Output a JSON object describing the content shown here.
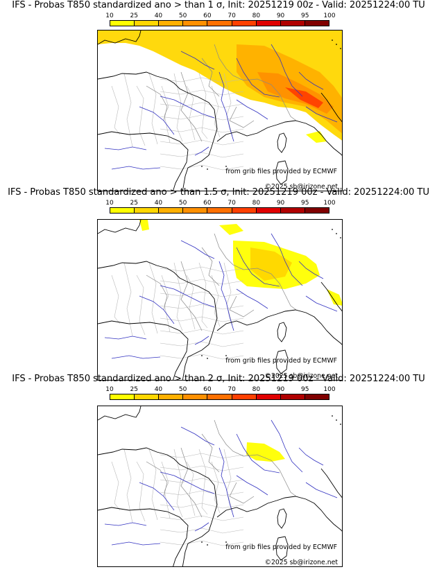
{
  "colorbar": {
    "ticks": [
      "10",
      "25",
      "40",
      "50",
      "60",
      "70",
      "80",
      "90",
      "95",
      "100"
    ],
    "colors": [
      "#ffff00",
      "#ffd700",
      "#ffb000",
      "#ff9000",
      "#ff7000",
      "#ff4000",
      "#e00000",
      "#b00000",
      "#800000",
      "#500000"
    ]
  },
  "panels": [
    {
      "title": "IFS - Probas T850  standardized ano > than 1 σ, Init: 20251219 00z - Valid: 20251224:00 TU",
      "credit_source": "from grib files provided by ECMWF",
      "credit_copyright": "©2025 sb@irizone.net",
      "sigma": "1"
    },
    {
      "title": "IFS - Probas T850  standardized ano > than 1.5 σ, Init: 20251219 00z - Valid: 20251224:00 TU",
      "credit_source": "from grib files provided by ECMWF",
      "credit_copyright": "©2025 sb@irizone.net",
      "sigma": "1.5"
    },
    {
      "title": "IFS - Probas T850  standardized ano > than 2 σ, Init: 20251219 00z - Valid: 20251224:00 TU",
      "credit_source": "from grib files provided by ECMWF",
      "credit_copyright": "©2025 sb@irizone.net",
      "sigma": "2"
    }
  ]
}
